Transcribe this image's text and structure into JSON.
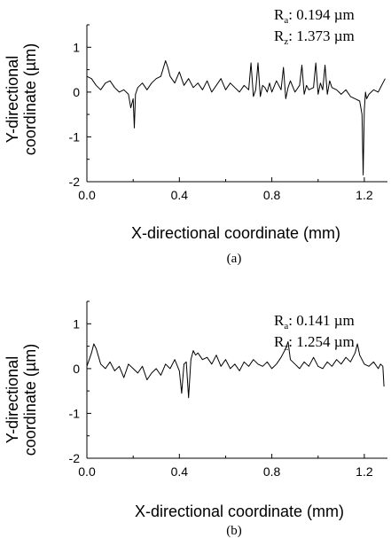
{
  "chart_data": [
    {
      "type": "line",
      "caption": "(a)",
      "xlabel": "X-directional coordinate (mm)",
      "ylabel_line1": "Y-directional",
      "ylabel_line2": "coordinate (µm)",
      "xlim": [
        0.0,
        1.3
      ],
      "ylim": [
        -2,
        1.5
      ],
      "xticks": [
        "0.0",
        "0.4",
        "0.8",
        "1.2"
      ],
      "yticks": [
        "-2",
        "-1",
        "0",
        "1"
      ],
      "annotations": [
        {
          "base": "R",
          "sub": "a",
          "value": ": 0.194 µm"
        },
        {
          "base": "R",
          "sub": "z",
          "value": ": 1.373 µm"
        }
      ],
      "series": [
        {
          "x": [
            0.0,
            0.02,
            0.04,
            0.06,
            0.08,
            0.1,
            0.12,
            0.14,
            0.16,
            0.18,
            0.19,
            0.2,
            0.205,
            0.21,
            0.22,
            0.24,
            0.26,
            0.28,
            0.3,
            0.32,
            0.34,
            0.35,
            0.36,
            0.38,
            0.4,
            0.42,
            0.44,
            0.46,
            0.48,
            0.5,
            0.52,
            0.54,
            0.56,
            0.58,
            0.6,
            0.62,
            0.64,
            0.66,
            0.68,
            0.7,
            0.71,
            0.72,
            0.73,
            0.74,
            0.75,
            0.76,
            0.77,
            0.78,
            0.79,
            0.8,
            0.82,
            0.84,
            0.85,
            0.86,
            0.87,
            0.88,
            0.9,
            0.92,
            0.93,
            0.94,
            0.95,
            0.96,
            0.98,
            0.99,
            1.0,
            1.01,
            1.02,
            1.03,
            1.04,
            1.05,
            1.06,
            1.08,
            1.1,
            1.12,
            1.14,
            1.16,
            1.18,
            1.19,
            1.195,
            1.2,
            1.205,
            1.21,
            1.22,
            1.24,
            1.26,
            1.28,
            1.29
          ],
          "y": [
            0.35,
            0.3,
            0.15,
            0.05,
            0.2,
            0.25,
            0.1,
            0.0,
            0.05,
            -0.05,
            -0.35,
            -0.15,
            -0.8,
            -0.05,
            0.1,
            0.2,
            0.05,
            0.2,
            0.3,
            0.35,
            0.7,
            0.55,
            0.35,
            0.2,
            0.45,
            0.15,
            0.3,
            0.1,
            0.2,
            0.05,
            0.25,
            0.0,
            0.15,
            0.3,
            0.05,
            0.2,
            0.1,
            0.0,
            0.15,
            0.05,
            0.65,
            -0.1,
            0.05,
            0.65,
            -0.1,
            0.15,
            0.1,
            0.0,
            0.2,
            0.0,
            0.25,
            0.05,
            0.55,
            -0.15,
            0.1,
            0.25,
            0.0,
            0.15,
            0.6,
            -0.05,
            0.15,
            0.05,
            0.1,
            0.65,
            -0.05,
            0.2,
            0.05,
            0.6,
            -0.05,
            0.25,
            0.1,
            0.05,
            -0.05,
            0.05,
            -0.1,
            -0.15,
            -0.2,
            -0.5,
            -1.85,
            -0.4,
            0.0,
            -0.15,
            -0.05,
            0.05,
            0.0,
            0.2,
            0.3
          ]
        }
      ]
    },
    {
      "type": "line",
      "caption": "(b)",
      "xlabel": "X-directional coordinate (mm)",
      "ylabel_line1": "Y-directional",
      "ylabel_line2": "coordinate (µm)",
      "xlim": [
        0.0,
        1.3
      ],
      "ylim": [
        -2,
        1.5
      ],
      "xticks": [
        "0.0",
        "0.4",
        "0.8",
        "1.2"
      ],
      "yticks": [
        "-2",
        "-1",
        "0",
        "1"
      ],
      "annotations": [
        {
          "base": "R",
          "sub": "a",
          "value": ": 0.141 µm"
        },
        {
          "base": "R",
          "sub": "z",
          "value": ": 1.254 µm"
        }
      ],
      "series": [
        {
          "x": [
            0.0,
            0.02,
            0.03,
            0.04,
            0.06,
            0.08,
            0.1,
            0.12,
            0.14,
            0.16,
            0.18,
            0.2,
            0.22,
            0.24,
            0.26,
            0.28,
            0.3,
            0.32,
            0.34,
            0.36,
            0.38,
            0.4,
            0.41,
            0.42,
            0.43,
            0.44,
            0.45,
            0.46,
            0.47,
            0.48,
            0.5,
            0.52,
            0.54,
            0.56,
            0.58,
            0.6,
            0.62,
            0.64,
            0.66,
            0.68,
            0.7,
            0.72,
            0.74,
            0.76,
            0.78,
            0.8,
            0.82,
            0.84,
            0.86,
            0.87,
            0.88,
            0.9,
            0.92,
            0.94,
            0.96,
            0.98,
            1.0,
            1.02,
            1.04,
            1.06,
            1.08,
            1.1,
            1.12,
            1.14,
            1.16,
            1.17,
            1.18,
            1.19,
            1.2,
            1.22,
            1.24,
            1.26,
            1.27,
            1.28,
            1.285
          ],
          "y": [
            0.05,
            0.35,
            0.55,
            0.45,
            0.1,
            0.0,
            0.15,
            -0.05,
            0.05,
            -0.2,
            0.1,
            0.0,
            -0.1,
            0.05,
            -0.25,
            -0.1,
            0.0,
            -0.15,
            0.1,
            0.0,
            0.2,
            -0.05,
            -0.55,
            0.1,
            0.15,
            -0.65,
            0.2,
            0.4,
            0.3,
            0.35,
            0.2,
            0.25,
            0.1,
            0.3,
            0.05,
            0.2,
            0.0,
            0.1,
            -0.05,
            0.15,
            0.05,
            0.2,
            0.1,
            0.05,
            0.15,
            0.0,
            0.1,
            0.25,
            0.45,
            0.6,
            0.2,
            0.1,
            0.0,
            0.15,
            0.05,
            0.25,
            0.05,
            0.0,
            0.15,
            0.05,
            0.2,
            0.1,
            0.25,
            0.15,
            0.35,
            0.55,
            0.3,
            0.2,
            0.1,
            0.05,
            0.15,
            0.0,
            0.1,
            0.05,
            -0.4
          ]
        }
      ]
    }
  ]
}
